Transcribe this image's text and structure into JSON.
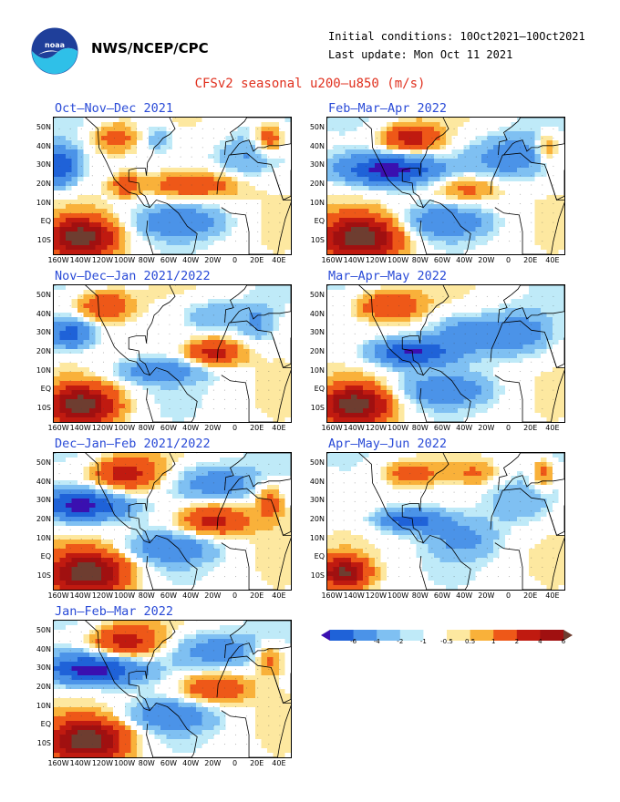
{
  "header": {
    "org": "NWS/NCEP/CPC",
    "initial_conditions": "Initial conditions: 10Oct2021–10Oct2021",
    "last_update": "Last update: Mon Oct 11 2021",
    "title": "CFSv2 seasonal u200–u850 (m/s)"
  },
  "axes": {
    "lat_labels": [
      "50N",
      "40N",
      "30N",
      "20N",
      "10N",
      "EQ",
      "10S"
    ],
    "lon_labels": [
      "160W",
      "140W",
      "120W",
      "100W",
      "80W",
      "60W",
      "40W",
      "20W",
      "0",
      "20E",
      "40E"
    ]
  },
  "panels": [
    {
      "title": "Oct–Nov–Dec 2021",
      "variant": 0
    },
    {
      "title": "Feb–Mar–Apr 2022",
      "variant": 4
    },
    {
      "title": "Nov–Dec–Jan 2021/2022",
      "variant": 1
    },
    {
      "title": "Mar–Apr–May 2022",
      "variant": 5
    },
    {
      "title": "Dec–Jan–Feb 2021/2022",
      "variant": 2
    },
    {
      "title": "Apr–May–Jun 2022",
      "variant": 6
    },
    {
      "title": "Jan–Feb–Mar 2022",
      "variant": 3
    }
  ],
  "colorbar": {
    "labels": [
      "-6",
      "-4",
      "-2",
      "-1",
      "-0.5",
      "0.5",
      "1",
      "2",
      "4",
      "6"
    ],
    "colors": [
      "#3a10b0",
      "#1f62d8",
      "#4b93e8",
      "#7fc0f2",
      "#bfeaf8",
      "#ffffff",
      "#fde8a0",
      "#f9b13a",
      "#ee5818",
      "#c01a10",
      "#a01010",
      "#6e3d30"
    ]
  }
}
